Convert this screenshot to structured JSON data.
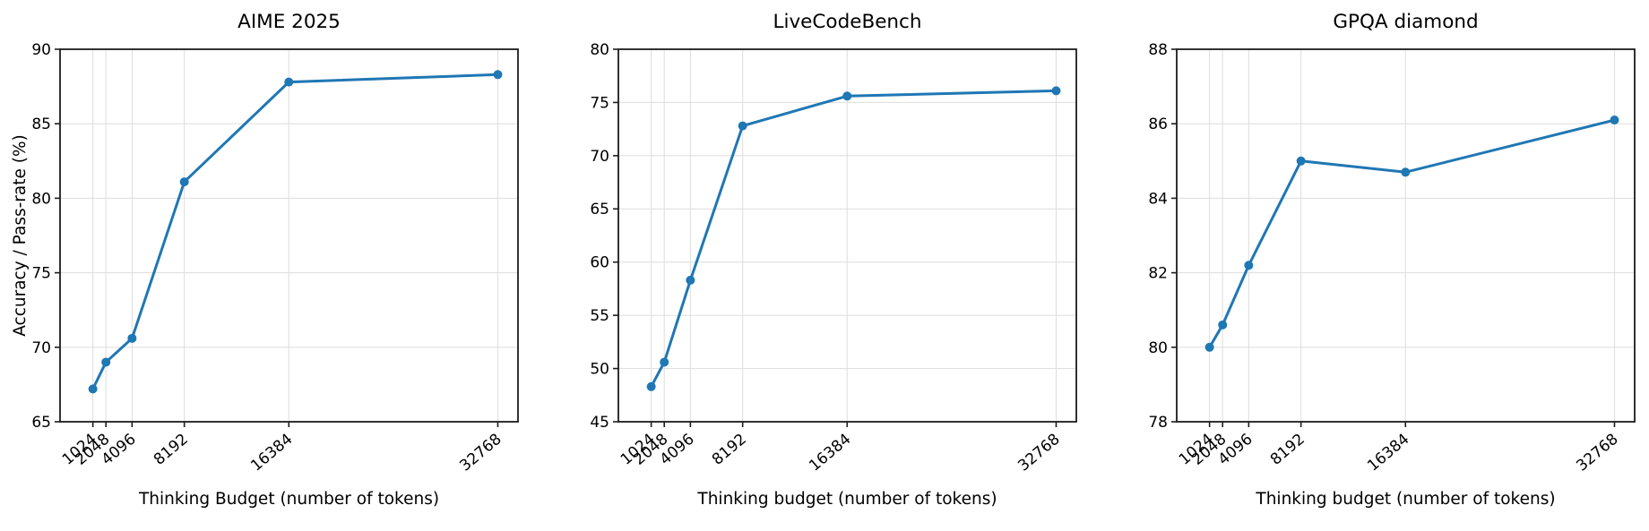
{
  "figure": {
    "background": "#ffffff",
    "text_color": "#000000",
    "spine_color": "#1c1c1c",
    "grid_color": "#e0e0e0",
    "accent": "#1f77b4"
  },
  "chart_data": [
    {
      "type": "line",
      "title": "AIME 2025",
      "xlabel": "Thinking Budget (number of tokens)",
      "ylabel": "Accuracy / Pass-rate (%)",
      "x": [
        1024,
        2048,
        4096,
        8192,
        16384,
        32768
      ],
      "xtick_labels": [
        "1024",
        "2048",
        "4096",
        "8192",
        "16384",
        "32768"
      ],
      "values": [
        67.2,
        69.0,
        70.6,
        81.1,
        87.8,
        88.3
      ],
      "yticks": [
        65,
        70,
        75,
        80,
        85,
        90
      ],
      "ylim": [
        65,
        90
      ],
      "xlim": [
        -1550,
        34350
      ],
      "x_scale": "linear",
      "grid": true,
      "legend_position": "none",
      "line_color": "#1f77b4",
      "marker": "circle"
    },
    {
      "type": "line",
      "title": "LiveCodeBench",
      "xlabel": "Thinking budget (number of tokens)",
      "ylabel": "",
      "x": [
        1024,
        2048,
        4096,
        8192,
        16384,
        32768
      ],
      "xtick_labels": [
        "1024",
        "2048",
        "4096",
        "8192",
        "16384",
        "32768"
      ],
      "values": [
        48.3,
        50.6,
        58.3,
        72.8,
        75.6,
        76.1
      ],
      "yticks": [
        45,
        50,
        55,
        60,
        65,
        70,
        75,
        80
      ],
      "ylim": [
        45,
        80
      ],
      "xlim": [
        -1550,
        34350
      ],
      "x_scale": "linear",
      "grid": true,
      "legend_position": "none",
      "line_color": "#1f77b4",
      "marker": "circle"
    },
    {
      "type": "line",
      "title": "GPQA diamond",
      "xlabel": "Thinking budget (number of tokens)",
      "ylabel": "",
      "x": [
        1024,
        2048,
        4096,
        8192,
        16384,
        32768
      ],
      "xtick_labels": [
        "1024",
        "2048",
        "4096",
        "8192",
        "16384",
        "32768"
      ],
      "values": [
        80.0,
        80.6,
        82.2,
        85.0,
        84.7,
        86.1
      ],
      "yticks": [
        78,
        80,
        82,
        84,
        86,
        88
      ],
      "ylim": [
        78,
        88
      ],
      "xlim": [
        -1550,
        34350
      ],
      "x_scale": "linear",
      "grid": true,
      "legend_position": "none",
      "line_color": "#1f77b4",
      "marker": "circle"
    }
  ]
}
